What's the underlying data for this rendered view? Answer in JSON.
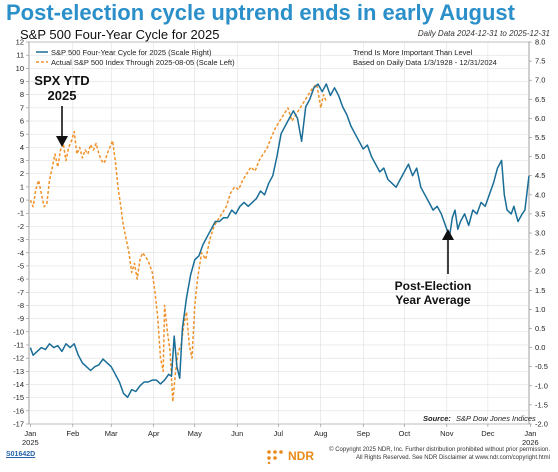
{
  "headline": "Post-election cycle uptrend ends in early August",
  "subtitle": "S&P 500 Four-Year Cycle for 2025",
  "daily_data": "Daily Data 2024-12-31 to 2025-12-31",
  "footer": {
    "chart_id": "S01642D",
    "logo_text": "NDR",
    "copyright_line1": "© Copyright 2025 NDR, Inc. Further distribution prohibited without prior permission.",
    "copyright_line2": "All Rights Reserved. See NDR Disclaimer at www.ndr.com/copyright.html"
  },
  "colors": {
    "headline": "#2b8fc9",
    "cycle_line": "#1a6d96",
    "actual_line": "#f0922a",
    "grid": "#d9d9d9"
  },
  "chart_data": {
    "type": "line",
    "title": "S&P 500 Four-Year Cycle for 2025",
    "x_tick_labels": [
      "Jan\n2025",
      "Feb",
      "Mar",
      "Apr",
      "May",
      "Jun",
      "Jul",
      "Aug",
      "Sep",
      "Oct",
      "Nov",
      "Dec",
      "Jan\n2026"
    ],
    "x_range": [
      "2024-12-31",
      "2025-12-31"
    ],
    "y_left": {
      "min": -17,
      "max": 12,
      "ticks": [
        12,
        11,
        10,
        9,
        8,
        7,
        6,
        5,
        4,
        3,
        2,
        1,
        0,
        -1,
        -2,
        -3,
        -4,
        -5,
        -6,
        -7,
        -8,
        -9,
        -10,
        -11,
        -12,
        -13,
        -14,
        -15,
        -16,
        -17
      ]
    },
    "y_right": {
      "min": -2.0,
      "max": 8.0,
      "ticks": [
        8.0,
        7.5,
        7.0,
        6.5,
        6.0,
        5.5,
        5.0,
        4.5,
        4.0,
        3.5,
        3.0,
        2.5,
        2.0,
        1.5,
        1.0,
        0.5,
        0.0,
        -0.5,
        -1.0,
        -1.5,
        -2.0
      ]
    },
    "grid": true,
    "legend": {
      "placement": "top-left",
      "entries": [
        {
          "name": "S&P 500 Four-Year Cycle for 2025 (Scale Right)",
          "style": "solid"
        },
        {
          "name": "Actual S&P 500 Index Through 2025-08-05 (Scale Left)",
          "style": "dashed"
        }
      ]
    },
    "notes": [
      "Trend Is More Important Than Level",
      "Based on Daily Data 1/3/1928 - 12/31/2024"
    ],
    "source_label": "Source:",
    "source_value": "S&P Dow Jones Indices",
    "annotations": [
      {
        "text": [
          "SPX YTD",
          "2025"
        ],
        "x": "2025-02-01",
        "y_left": 5.5
      },
      {
        "text": [
          "Post-Election",
          "Year Average"
        ],
        "x": "2025-11-08",
        "y_right": 2.1
      }
    ],
    "series": [
      {
        "name": "S&P 500 Four-Year Cycle for 2025 (Scale Right)",
        "axis": "right",
        "points": [
          [
            "2025-01-01",
            0.0
          ],
          [
            "2025-01-03",
            -0.2
          ],
          [
            "2025-01-06",
            -0.1
          ],
          [
            "2025-01-09",
            0.0
          ],
          [
            "2025-01-12",
            -0.05
          ],
          [
            "2025-01-15",
            0.1
          ],
          [
            "2025-01-18",
            0.0
          ],
          [
            "2025-01-21",
            0.05
          ],
          [
            "2025-01-24",
            -0.1
          ],
          [
            "2025-01-27",
            0.1
          ],
          [
            "2025-01-30",
            0.0
          ],
          [
            "2025-02-02",
            0.1
          ],
          [
            "2025-02-05",
            -0.2
          ],
          [
            "2025-02-08",
            -0.4
          ],
          [
            "2025-02-11",
            -0.5
          ],
          [
            "2025-02-14",
            -0.6
          ],
          [
            "2025-02-17",
            -0.5
          ],
          [
            "2025-02-20",
            -0.45
          ],
          [
            "2025-02-23",
            -0.3
          ],
          [
            "2025-02-26",
            -0.4
          ],
          [
            "2025-03-01",
            -0.5
          ],
          [
            "2025-03-04",
            -0.7
          ],
          [
            "2025-03-07",
            -0.9
          ],
          [
            "2025-03-10",
            -1.2
          ],
          [
            "2025-03-13",
            -1.3
          ],
          [
            "2025-03-16",
            -1.1
          ],
          [
            "2025-03-19",
            -1.15
          ],
          [
            "2025-03-22",
            -1.0
          ],
          [
            "2025-03-25",
            -0.9
          ],
          [
            "2025-03-28",
            -0.9
          ],
          [
            "2025-03-31",
            -0.85
          ],
          [
            "2025-04-03",
            -0.85
          ],
          [
            "2025-04-06",
            -0.95
          ],
          [
            "2025-04-09",
            -0.85
          ],
          [
            "2025-04-12",
            -0.7
          ],
          [
            "2025-04-14",
            -0.75
          ],
          [
            "2025-04-16",
            0.3
          ],
          [
            "2025-04-18",
            -0.5
          ],
          [
            "2025-04-20",
            -0.8
          ],
          [
            "2025-04-22",
            0.5
          ],
          [
            "2025-04-25",
            1.3
          ],
          [
            "2025-04-28",
            1.9
          ],
          [
            "2025-05-01",
            2.3
          ],
          [
            "2025-05-04",
            2.4
          ],
          [
            "2025-05-07",
            2.7
          ],
          [
            "2025-05-10",
            2.9
          ],
          [
            "2025-05-13",
            3.1
          ],
          [
            "2025-05-16",
            3.3
          ],
          [
            "2025-05-19",
            3.3
          ],
          [
            "2025-05-22",
            3.4
          ],
          [
            "2025-05-25",
            3.4
          ],
          [
            "2025-05-28",
            3.6
          ],
          [
            "2025-05-31",
            3.5
          ],
          [
            "2025-06-03",
            3.7
          ],
          [
            "2025-06-06",
            3.8
          ],
          [
            "2025-06-09",
            3.7
          ],
          [
            "2025-06-12",
            3.8
          ],
          [
            "2025-06-15",
            3.9
          ],
          [
            "2025-06-18",
            4.1
          ],
          [
            "2025-06-21",
            4.0
          ],
          [
            "2025-06-24",
            4.3
          ],
          [
            "2025-06-27",
            4.5
          ],
          [
            "2025-06-30",
            5.0
          ],
          [
            "2025-07-03",
            5.6
          ],
          [
            "2025-07-06",
            5.8
          ],
          [
            "2025-07-09",
            6.0
          ],
          [
            "2025-07-12",
            6.2
          ],
          [
            "2025-07-15",
            6.0
          ],
          [
            "2025-07-18",
            5.4
          ],
          [
            "2025-07-21",
            6.3
          ],
          [
            "2025-07-24",
            6.5
          ],
          [
            "2025-07-27",
            6.8
          ],
          [
            "2025-07-30",
            6.9
          ],
          [
            "2025-08-02",
            6.7
          ],
          [
            "2025-08-05",
            6.9
          ],
          [
            "2025-08-08",
            6.6
          ],
          [
            "2025-08-11",
            6.8
          ],
          [
            "2025-08-14",
            6.6
          ],
          [
            "2025-08-17",
            6.3
          ],
          [
            "2025-08-20",
            6.1
          ],
          [
            "2025-08-23",
            5.8
          ],
          [
            "2025-08-26",
            5.6
          ],
          [
            "2025-08-29",
            5.4
          ],
          [
            "2025-09-01",
            5.2
          ],
          [
            "2025-09-04",
            5.3
          ],
          [
            "2025-09-07",
            5.0
          ],
          [
            "2025-09-10",
            4.8
          ],
          [
            "2025-09-13",
            4.6
          ],
          [
            "2025-09-16",
            4.7
          ],
          [
            "2025-09-19",
            4.4
          ],
          [
            "2025-09-22",
            4.3
          ],
          [
            "2025-09-25",
            4.2
          ],
          [
            "2025-09-28",
            4.4
          ],
          [
            "2025-10-01",
            4.6
          ],
          [
            "2025-10-04",
            4.8
          ],
          [
            "2025-10-07",
            4.5
          ],
          [
            "2025-10-10",
            4.7
          ],
          [
            "2025-10-13",
            4.2
          ],
          [
            "2025-10-16",
            4.0
          ],
          [
            "2025-10-19",
            3.8
          ],
          [
            "2025-10-22",
            3.6
          ],
          [
            "2025-10-25",
            3.7
          ],
          [
            "2025-10-28",
            3.5
          ],
          [
            "2025-10-31",
            3.2
          ],
          [
            "2025-11-03",
            2.9
          ],
          [
            "2025-11-05",
            3.4
          ],
          [
            "2025-11-07",
            3.6
          ],
          [
            "2025-11-09",
            3.1
          ],
          [
            "2025-11-11",
            3.3
          ],
          [
            "2025-11-14",
            3.5
          ],
          [
            "2025-11-17",
            3.2
          ],
          [
            "2025-11-20",
            3.6
          ],
          [
            "2025-11-23",
            3.5
          ],
          [
            "2025-11-26",
            3.8
          ],
          [
            "2025-11-29",
            3.7
          ],
          [
            "2025-12-02",
            4.0
          ],
          [
            "2025-12-05",
            4.3
          ],
          [
            "2025-12-08",
            4.7
          ],
          [
            "2025-12-11",
            4.9
          ],
          [
            "2025-12-13",
            4.0
          ],
          [
            "2025-12-15",
            3.6
          ],
          [
            "2025-12-18",
            3.5
          ],
          [
            "2025-12-20",
            3.7
          ],
          [
            "2025-12-23",
            3.3
          ],
          [
            "2025-12-26",
            3.5
          ],
          [
            "2025-12-28",
            3.6
          ],
          [
            "2025-12-31",
            4.5
          ]
        ]
      },
      {
        "name": "Actual S&P 500 Index Through 2025-08-05 (Scale Left)",
        "axis": "left",
        "points": [
          [
            "2025-01-01",
            0.0
          ],
          [
            "2025-01-03",
            -0.5
          ],
          [
            "2025-01-05",
            0.8
          ],
          [
            "2025-01-07",
            1.5
          ],
          [
            "2025-01-09",
            0.5
          ],
          [
            "2025-01-11",
            -0.5
          ],
          [
            "2025-01-13",
            -0.3
          ],
          [
            "2025-01-15",
            1.5
          ],
          [
            "2025-01-17",
            2.5
          ],
          [
            "2025-01-19",
            3.5
          ],
          [
            "2025-01-21",
            2.5
          ],
          [
            "2025-01-23",
            3.8
          ],
          [
            "2025-01-25",
            4.3
          ],
          [
            "2025-01-27",
            3.0
          ],
          [
            "2025-01-29",
            4.0
          ],
          [
            "2025-01-31",
            4.5
          ],
          [
            "2025-02-02",
            5.2
          ],
          [
            "2025-02-04",
            3.5
          ],
          [
            "2025-02-06",
            4.0
          ],
          [
            "2025-02-08",
            3.2
          ],
          [
            "2025-02-10",
            3.8
          ],
          [
            "2025-02-12",
            3.5
          ],
          [
            "2025-02-14",
            4.2
          ],
          [
            "2025-02-16",
            3.8
          ],
          [
            "2025-02-18",
            4.3
          ],
          [
            "2025-02-20",
            3.5
          ],
          [
            "2025-02-22",
            3.0
          ],
          [
            "2025-02-24",
            2.8
          ],
          [
            "2025-02-26",
            3.5
          ],
          [
            "2025-02-28",
            4.0
          ],
          [
            "2025-03-02",
            4.5
          ],
          [
            "2025-03-04",
            3.0
          ],
          [
            "2025-03-06",
            1.0
          ],
          [
            "2025-03-08",
            -0.5
          ],
          [
            "2025-03-10",
            -2.0
          ],
          [
            "2025-03-12",
            -3.0
          ],
          [
            "2025-03-14",
            -4.0
          ],
          [
            "2025-03-16",
            -5.5
          ],
          [
            "2025-03-18",
            -4.8
          ],
          [
            "2025-03-20",
            -6.0
          ],
          [
            "2025-03-22",
            -4.5
          ],
          [
            "2025-03-24",
            -4.0
          ],
          [
            "2025-03-26",
            -4.3
          ],
          [
            "2025-03-28",
            -4.6
          ],
          [
            "2025-03-31",
            -5.5
          ],
          [
            "2025-04-02",
            -7.0
          ],
          [
            "2025-04-04",
            -9.0
          ],
          [
            "2025-04-06",
            -12.0
          ],
          [
            "2025-04-08",
            -13.0
          ],
          [
            "2025-04-09",
            -8.0
          ],
          [
            "2025-04-11",
            -10.0
          ],
          [
            "2025-04-13",
            -11.5
          ],
          [
            "2025-04-15",
            -15.3
          ],
          [
            "2025-04-17",
            -13.0
          ],
          [
            "2025-04-19",
            -11.5
          ],
          [
            "2025-04-21",
            -11.0
          ],
          [
            "2025-04-23",
            -9.5
          ],
          [
            "2025-04-25",
            -8.5
          ],
          [
            "2025-04-27",
            -11.0
          ],
          [
            "2025-04-29",
            -12.0
          ],
          [
            "2025-05-01",
            -8.0
          ],
          [
            "2025-05-03",
            -6.0
          ],
          [
            "2025-05-06",
            -4.0
          ],
          [
            "2025-05-09",
            -4.5
          ],
          [
            "2025-05-12",
            -3.0
          ],
          [
            "2025-05-15",
            -2.0
          ],
          [
            "2025-05-18",
            -1.5
          ],
          [
            "2025-05-21",
            -1.0
          ],
          [
            "2025-05-24",
            -0.5
          ],
          [
            "2025-05-27",
            0.5
          ],
          [
            "2025-05-30",
            1.0
          ],
          [
            "2025-06-02",
            0.8
          ],
          [
            "2025-06-05",
            1.5
          ],
          [
            "2025-06-08",
            2.0
          ],
          [
            "2025-06-11",
            2.5
          ],
          [
            "2025-06-14",
            2.2
          ],
          [
            "2025-06-17",
            3.0
          ],
          [
            "2025-06-20",
            3.5
          ],
          [
            "2025-06-23",
            4.0
          ],
          [
            "2025-06-26",
            4.8
          ],
          [
            "2025-06-29",
            5.5
          ],
          [
            "2025-07-02",
            6.0
          ],
          [
            "2025-07-05",
            6.5
          ],
          [
            "2025-07-08",
            7.0
          ],
          [
            "2025-07-11",
            6.0
          ],
          [
            "2025-07-14",
            6.5
          ],
          [
            "2025-07-17",
            7.0
          ],
          [
            "2025-07-20",
            7.5
          ],
          [
            "2025-07-23",
            8.0
          ],
          [
            "2025-07-26",
            8.5
          ],
          [
            "2025-07-29",
            8.8
          ],
          [
            "2025-08-01",
            7.0
          ],
          [
            "2025-08-03",
            8.0
          ],
          [
            "2025-08-05",
            7.5
          ]
        ]
      }
    ]
  }
}
